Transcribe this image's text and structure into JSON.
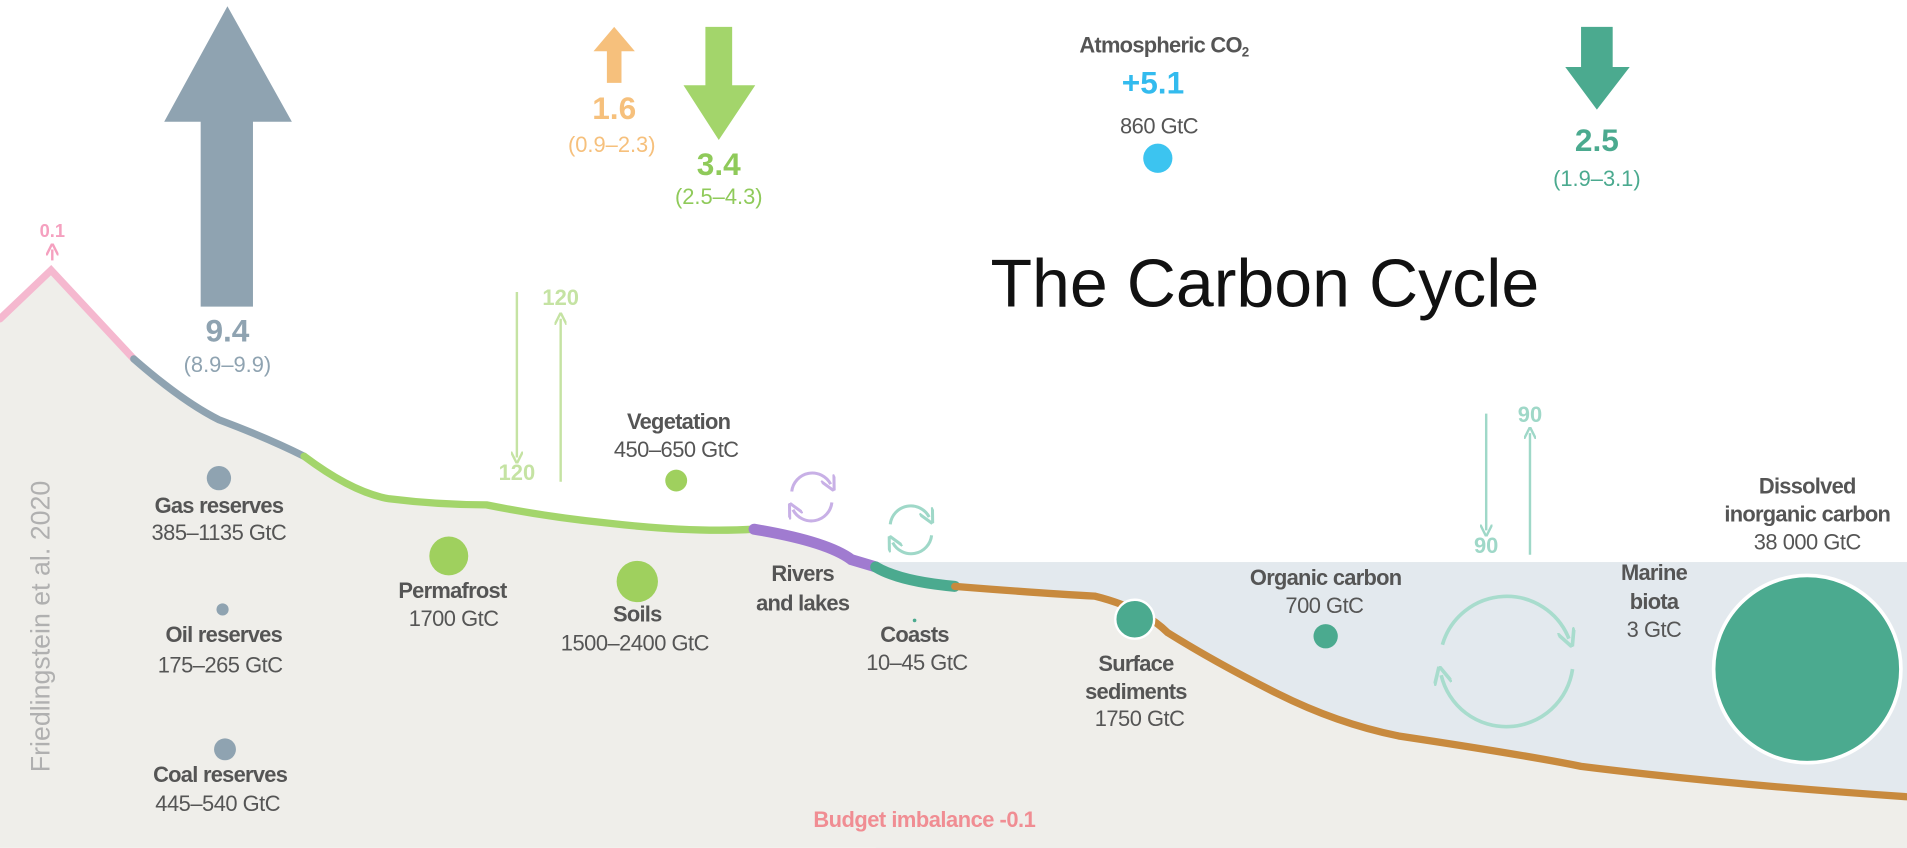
{
  "title": "The Carbon Cycle",
  "credit": "Friedlingstein et al. 2020",
  "budget_imbalance": "Budget imbalance -0.1",
  "atmosphere": {
    "name": "Atmospheric CO",
    "subscript": "2",
    "growth": "+5.1",
    "stock": "860 GtC"
  },
  "fluxes": {
    "volcanic": {
      "value": "0.1"
    },
    "fossil": {
      "value": "9.4",
      "range": "(8.9–9.9)"
    },
    "land_use": {
      "value": "1.6",
      "range": "(0.9–2.3)"
    },
    "land_sink": {
      "value": "3.4",
      "range": "(2.5–4.3)"
    },
    "ocean_sink": {
      "value": "2.5",
      "range": "(1.9–3.1)"
    }
  },
  "exchanges": {
    "land": {
      "down": "120",
      "up": "120"
    },
    "ocean": {
      "down": "90",
      "up": "90"
    }
  },
  "reservoirs": [
    {
      "name": [
        "Gas reserves"
      ],
      "stock": "385–1135 GtC"
    },
    {
      "name": [
        "Oil reserves"
      ],
      "stock": "175–265 GtC"
    },
    {
      "name": [
        "Coal reserves"
      ],
      "stock": "445–540 GtC"
    },
    {
      "name": [
        "Permafrost"
      ],
      "stock": "1700 GtC"
    },
    {
      "name": [
        "Vegetation"
      ],
      "stock": "450–650 GtC"
    },
    {
      "name": [
        "Soils"
      ],
      "stock": "1500–2400 GtC"
    },
    {
      "name": [
        "Rivers",
        "and lakes"
      ]
    },
    {
      "name": [
        "Coasts"
      ],
      "stock": "10–45 GtC"
    },
    {
      "name": [
        "Surface",
        "sediments"
      ],
      "stock": "1750 GtC"
    },
    {
      "name": [
        "Organic carbon"
      ],
      "stock": "700 GtC"
    },
    {
      "name": [
        "Marine",
        "biota"
      ],
      "stock": "3 GtC"
    },
    {
      "name": [
        "Dissolved",
        "inorganic carbon"
      ],
      "stock": "38 000 GtC"
    }
  ]
}
